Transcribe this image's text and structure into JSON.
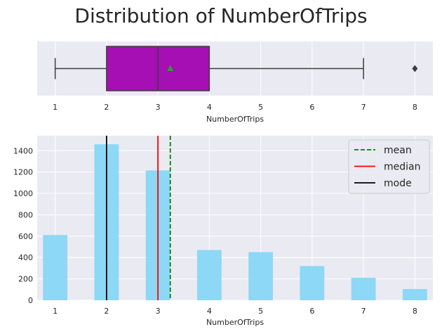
{
  "chart_data": [
    {
      "type": "box",
      "title": "Distribution of NumberOfTrips",
      "xlabel": "NumberOfTrips",
      "xlim": [
        0.65,
        8.35
      ],
      "xticks": [
        1,
        2,
        3,
        4,
        5,
        6,
        7,
        8
      ],
      "grid": true,
      "box": {
        "whisker_low": 1,
        "q1": 2,
        "median": 3,
        "q3": 4,
        "whisker_high": 7,
        "mean": 3.24,
        "outliers": [
          8
        ],
        "fill_color": "#a60fb4",
        "mean_marker_color": "#2ca02c"
      }
    },
    {
      "type": "bar",
      "xlabel": "NumberOfTrips",
      "xlim": [
        0.65,
        8.35
      ],
      "ylim": [
        0,
        1540
      ],
      "xticks": [
        1,
        2,
        3,
        4,
        5,
        6,
        7,
        8
      ],
      "yticks": [
        0,
        200,
        400,
        600,
        800,
        1000,
        1200,
        1400
      ],
      "grid": true,
      "bar_color": "#87d7f6",
      "categories": [
        1,
        2,
        3,
        4,
        5,
        6,
        7,
        8
      ],
      "values": [
        610,
        1460,
        1215,
        470,
        450,
        320,
        210,
        105
      ],
      "reference_lines": [
        {
          "name": "mean",
          "value": 3.24,
          "color": "#008000",
          "style": "dashed"
        },
        {
          "name": "median",
          "value": 3,
          "color": "#ff0000",
          "style": "solid"
        },
        {
          "name": "mode",
          "value": 2,
          "color": "#000000",
          "style": "solid"
        }
      ],
      "legend": {
        "position": "top-right",
        "entries": [
          "mean",
          "median",
          "mode"
        ]
      }
    }
  ]
}
